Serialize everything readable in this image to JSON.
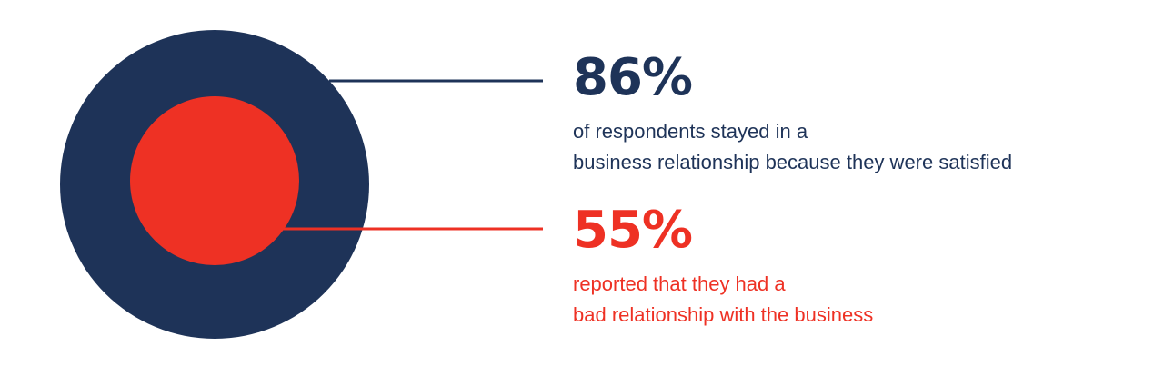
{
  "chart_data": {
    "type": "pie",
    "title": "",
    "series": [
      {
        "value": "86%",
        "percent": 86,
        "description_lines": [
          "of respondents stayed in a",
          "business relationship because they were satisfied"
        ],
        "color": "#1e3358"
      },
      {
        "value": "55%",
        "percent": 55,
        "description_lines": [
          "reported that they had a",
          "bad relationship with the business"
        ],
        "color": "#ee3124"
      }
    ]
  },
  "colors": {
    "outer_circle": "#1e3358",
    "inner_circle": "#ee3124",
    "background": "#ffffff"
  }
}
